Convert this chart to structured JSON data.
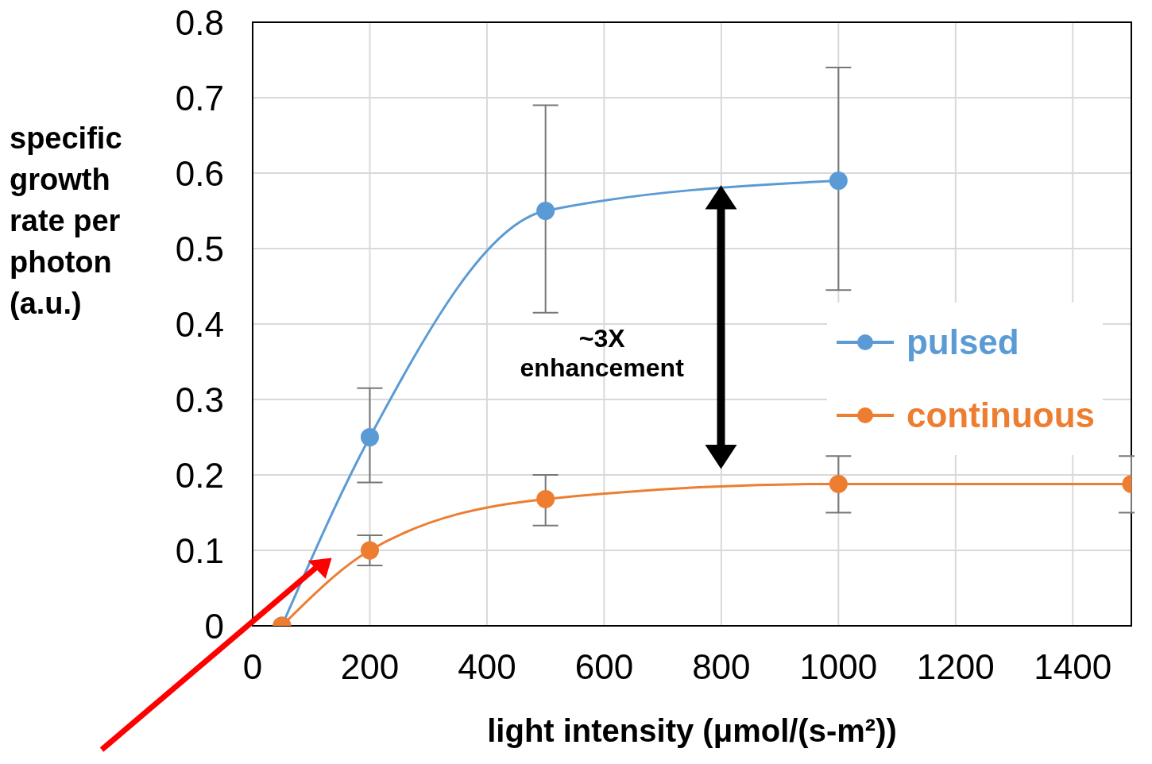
{
  "chart_data": {
    "type": "line",
    "xlabel": "light intensity (μmol/(s-m²))",
    "ylabel": "specific growth rate per photon (a.u.)",
    "annotations": [
      "~3X enhancement"
    ],
    "xlim": [
      0,
      1500
    ],
    "xticks": [
      0,
      200,
      400,
      600,
      800,
      1000,
      1200,
      1400
    ],
    "ylim": [
      0,
      0.8
    ],
    "yticks": [
      0,
      0.1,
      0.2,
      0.3,
      0.4,
      0.5,
      0.6,
      0.7,
      0.8
    ],
    "grid": true,
    "legend": "right",
    "marker": "circle",
    "line_style": "solid",
    "series": [
      {
        "name": "pulsed",
        "color": "#5b9bd5",
        "x": [
          50,
          200,
          500,
          1000
        ],
        "values": [
          0,
          0.25,
          0.55,
          0.59
        ],
        "errors": [
          null,
          [
            0.19,
            0.315
          ],
          [
            0.415,
            0.69
          ],
          [
            0.445,
            0.74
          ]
        ]
      },
      {
        "name": "continuous",
        "color": "#ed7d31",
        "x": [
          50,
          200,
          500,
          1000,
          1500
        ],
        "values": [
          0,
          0.1,
          0.168,
          0.188,
          0.188
        ],
        "errors": [
          null,
          [
            0.08,
            0.12
          ],
          [
            0.133,
            0.2
          ],
          [
            0.15,
            0.225
          ],
          [
            0.15,
            0.225
          ]
        ]
      }
    ]
  }
}
